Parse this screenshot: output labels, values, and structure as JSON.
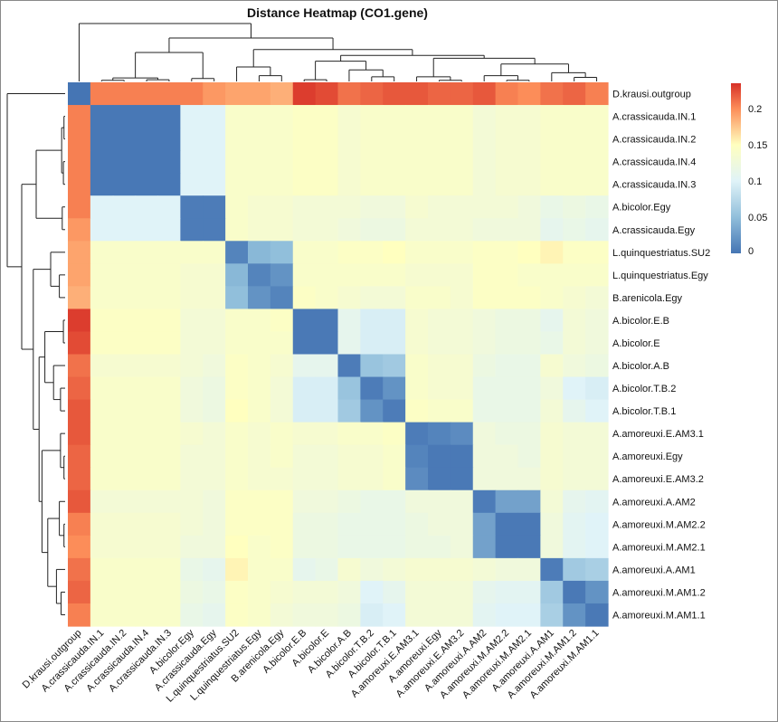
{
  "chart_data": {
    "type": "heatmap",
    "title": "Distance Heatmap (CO1.gene)",
    "labels": [
      "D.krausi.outgroup",
      "A.crassicauda.IN.1",
      "A.crassicauda.IN.2",
      "A.crassicauda.IN.4",
      "A.crassicauda.IN.3",
      "A.bicolor.Egy",
      "A.crassicauda.Egy",
      "L.quinquestriatus.SU2",
      "L.quinquestriatus.Egy",
      "B.arenicola.Egy",
      "A.bicolor.E.B",
      "A.bicolor.E",
      "A.bicolor.A.B",
      "A.bicolor.T.B.2",
      "A.bicolor.T.B.1",
      "A.amoreuxi.E.AM3.1",
      "A.amoreuxi.Egy",
      "A.amoreuxi.E.AM3.2",
      "A.amoreuxi.A.AM2",
      "A.amoreuxi.M.AM2.2",
      "A.amoreuxi.M.AM2.1",
      "A.amoreuxi.A.AM1",
      "A.amoreuxi.M.AM1.2",
      "A.amoreuxi.M.AM1.1"
    ],
    "values": [
      [
        0,
        0.205,
        0.205,
        0.205,
        0.205,
        0.205,
        0.195,
        0.19,
        0.19,
        0.185,
        0.23,
        0.225,
        0.21,
        0.215,
        0.22,
        0.22,
        0.215,
        0.215,
        0.22,
        0.205,
        0.2,
        0.21,
        0.215,
        0.205
      ],
      [
        0.205,
        0.002,
        0.002,
        0.002,
        0.002,
        0.1,
        0.1,
        0.14,
        0.14,
        0.14,
        0.145,
        0.145,
        0.135,
        0.14,
        0.14,
        0.14,
        0.14,
        0.14,
        0.13,
        0.135,
        0.135,
        0.14,
        0.14,
        0.14
      ],
      [
        0.205,
        0.002,
        0.002,
        0.002,
        0.002,
        0.1,
        0.1,
        0.14,
        0.14,
        0.14,
        0.145,
        0.145,
        0.135,
        0.14,
        0.14,
        0.14,
        0.14,
        0.14,
        0.13,
        0.135,
        0.135,
        0.14,
        0.14,
        0.14
      ],
      [
        0.205,
        0.002,
        0.002,
        0.002,
        0.002,
        0.1,
        0.1,
        0.14,
        0.14,
        0.14,
        0.145,
        0.145,
        0.135,
        0.14,
        0.14,
        0.14,
        0.14,
        0.14,
        0.13,
        0.135,
        0.135,
        0.14,
        0.14,
        0.14
      ],
      [
        0.205,
        0.002,
        0.002,
        0.002,
        0.002,
        0.1,
        0.1,
        0.14,
        0.14,
        0.14,
        0.145,
        0.145,
        0.135,
        0.14,
        0.14,
        0.14,
        0.14,
        0.14,
        0.13,
        0.135,
        0.135,
        0.14,
        0.14,
        0.14
      ],
      [
        0.205,
        0.1,
        0.1,
        0.1,
        0.1,
        0.005,
        0.005,
        0.14,
        0.135,
        0.135,
        0.13,
        0.13,
        0.13,
        0.125,
        0.125,
        0.135,
        0.13,
        0.13,
        0.13,
        0.13,
        0.125,
        0.115,
        0.12,
        0.115
      ],
      [
        0.195,
        0.1,
        0.1,
        0.1,
        0.1,
        0.005,
        0.005,
        0.14,
        0.135,
        0.135,
        0.13,
        0.13,
        0.125,
        0.12,
        0.12,
        0.13,
        0.13,
        0.13,
        0.125,
        0.125,
        0.125,
        0.11,
        0.115,
        0.11
      ],
      [
        0.19,
        0.14,
        0.14,
        0.14,
        0.14,
        0.14,
        0.14,
        0.01,
        0.045,
        0.05,
        0.14,
        0.14,
        0.145,
        0.145,
        0.15,
        0.14,
        0.14,
        0.14,
        0.145,
        0.145,
        0.15,
        0.155,
        0.145,
        0.145
      ],
      [
        0.19,
        0.14,
        0.14,
        0.14,
        0.14,
        0.135,
        0.135,
        0.045,
        0.01,
        0.02,
        0.14,
        0.14,
        0.14,
        0.14,
        0.14,
        0.135,
        0.135,
        0.135,
        0.145,
        0.145,
        0.14,
        0.14,
        0.14,
        0.14
      ],
      [
        0.185,
        0.14,
        0.14,
        0.14,
        0.14,
        0.135,
        0.135,
        0.05,
        0.02,
        0.01,
        0.145,
        0.14,
        0.135,
        0.13,
        0.13,
        0.14,
        0.14,
        0.135,
        0.145,
        0.145,
        0.145,
        0.14,
        0.135,
        0.13
      ],
      [
        0.23,
        0.145,
        0.145,
        0.145,
        0.145,
        0.13,
        0.13,
        0.14,
        0.14,
        0.145,
        0.003,
        0.003,
        0.11,
        0.095,
        0.095,
        0.135,
        0.13,
        0.13,
        0.125,
        0.12,
        0.12,
        0.11,
        0.13,
        0.125
      ],
      [
        0.225,
        0.145,
        0.145,
        0.145,
        0.145,
        0.13,
        0.13,
        0.14,
        0.14,
        0.14,
        0.003,
        0.003,
        0.11,
        0.095,
        0.095,
        0.135,
        0.13,
        0.13,
        0.125,
        0.12,
        0.12,
        0.115,
        0.13,
        0.125
      ],
      [
        0.21,
        0.135,
        0.135,
        0.135,
        0.135,
        0.13,
        0.125,
        0.145,
        0.14,
        0.135,
        0.11,
        0.11,
        0.005,
        0.055,
        0.06,
        0.14,
        0.135,
        0.135,
        0.12,
        0.115,
        0.115,
        0.135,
        0.125,
        0.12
      ],
      [
        0.215,
        0.14,
        0.14,
        0.14,
        0.14,
        0.125,
        0.12,
        0.145,
        0.14,
        0.13,
        0.095,
        0.095,
        0.055,
        0.005,
        0.02,
        0.14,
        0.135,
        0.135,
        0.115,
        0.115,
        0.115,
        0.125,
        0.1,
        0.095
      ],
      [
        0.22,
        0.14,
        0.14,
        0.14,
        0.14,
        0.125,
        0.12,
        0.15,
        0.14,
        0.13,
        0.095,
        0.095,
        0.06,
        0.02,
        0.005,
        0.145,
        0.14,
        0.14,
        0.115,
        0.115,
        0.115,
        0.13,
        0.11,
        0.1
      ],
      [
        0.22,
        0.14,
        0.14,
        0.14,
        0.14,
        0.135,
        0.13,
        0.14,
        0.135,
        0.14,
        0.135,
        0.135,
        0.14,
        0.14,
        0.145,
        0.005,
        0.01,
        0.015,
        0.125,
        0.12,
        0.12,
        0.135,
        0.13,
        0.13
      ],
      [
        0.215,
        0.14,
        0.14,
        0.14,
        0.14,
        0.13,
        0.13,
        0.14,
        0.135,
        0.14,
        0.13,
        0.13,
        0.135,
        0.135,
        0.14,
        0.01,
        0.003,
        0.003,
        0.125,
        0.125,
        0.12,
        0.135,
        0.13,
        0.13
      ],
      [
        0.215,
        0.14,
        0.14,
        0.14,
        0.14,
        0.13,
        0.13,
        0.14,
        0.135,
        0.135,
        0.13,
        0.13,
        0.135,
        0.135,
        0.14,
        0.015,
        0.003,
        0.003,
        0.125,
        0.125,
        0.125,
        0.135,
        0.13,
        0.13
      ],
      [
        0.22,
        0.13,
        0.13,
        0.13,
        0.13,
        0.13,
        0.125,
        0.145,
        0.145,
        0.145,
        0.125,
        0.125,
        0.12,
        0.115,
        0.115,
        0.125,
        0.125,
        0.125,
        0.005,
        0.03,
        0.03,
        0.13,
        0.11,
        0.105
      ],
      [
        0.205,
        0.135,
        0.135,
        0.135,
        0.135,
        0.13,
        0.125,
        0.145,
        0.145,
        0.145,
        0.12,
        0.12,
        0.115,
        0.115,
        0.115,
        0.12,
        0.125,
        0.125,
        0.03,
        0.003,
        0.003,
        0.125,
        0.105,
        0.1
      ],
      [
        0.2,
        0.135,
        0.135,
        0.135,
        0.135,
        0.125,
        0.125,
        0.15,
        0.14,
        0.145,
        0.12,
        0.12,
        0.115,
        0.115,
        0.115,
        0.12,
        0.12,
        0.125,
        0.03,
        0.003,
        0.003,
        0.125,
        0.105,
        0.1
      ],
      [
        0.21,
        0.14,
        0.14,
        0.14,
        0.14,
        0.115,
        0.11,
        0.155,
        0.14,
        0.14,
        0.11,
        0.115,
        0.135,
        0.125,
        0.13,
        0.135,
        0.135,
        0.135,
        0.13,
        0.125,
        0.125,
        0.005,
        0.06,
        0.065
      ],
      [
        0.215,
        0.14,
        0.14,
        0.14,
        0.14,
        0.12,
        0.115,
        0.145,
        0.14,
        0.135,
        0.13,
        0.13,
        0.125,
        0.1,
        0.11,
        0.13,
        0.13,
        0.13,
        0.11,
        0.105,
        0.105,
        0.06,
        0.003,
        0.02
      ],
      [
        0.205,
        0.14,
        0.14,
        0.14,
        0.14,
        0.115,
        0.11,
        0.145,
        0.14,
        0.13,
        0.125,
        0.125,
        0.12,
        0.095,
        0.1,
        0.13,
        0.13,
        0.13,
        0.105,
        0.1,
        0.1,
        0.065,
        0.02,
        0.003
      ]
    ],
    "color_scale": {
      "min": 0,
      "max": 0.235,
      "stops": [
        [
          0,
          "#4575b4"
        ],
        [
          0.05,
          "#91bfdb"
        ],
        [
          0.1,
          "#e0f3f8"
        ],
        [
          0.15,
          "#ffffbf"
        ],
        [
          0.2,
          "#fc8d59"
        ],
        [
          0.235,
          "#d73027"
        ]
      ]
    },
    "legend_ticks": [
      "0",
      "0.05",
      "0.1",
      "0.15",
      "0.2"
    ],
    "legend_tick_values": [
      0,
      0.05,
      0.1,
      0.15,
      0.2
    ],
    "legend_placement": "right",
    "dendrogram": {
      "h": 1,
      "c": [
        0,
        {
          "h": 0.75,
          "c": [
            {
              "h": 0.5,
              "c": [
                {
                  "h": 0.06,
                  "c": [
                    {
                      "h": 0.02,
                      "c": [
                        1,
                        2
                      ]
                    },
                    {
                      "h": 0.03,
                      "c": [
                        3,
                        4
                      ]
                    }
                  ]
                },
                {
                  "h": 0.05,
                  "c": [
                    5,
                    6
                  ]
                }
              ]
            },
            {
              "h": 0.55,
              "c": [
                {
                  "h": 0.25,
                  "c": [
                    7,
                    {
                      "h": 0.1,
                      "c": [
                        8,
                        9
                      ]
                    }
                  ]
                },
                {
                  "h": 0.45,
                  "c": [
                    {
                      "h": 0.35,
                      "c": [
                        {
                          "h": 0.03,
                          "c": [
                            10,
                            11
                          ]
                        },
                        {
                          "h": 0.2,
                          "c": [
                            12,
                            {
                              "h": 0.08,
                              "c": [
                                13,
                                14
                              ]
                            }
                          ]
                        }
                      ]
                    },
                    {
                      "h": 0.4,
                      "c": [
                        {
                          "h": 0.08,
                          "c": [
                            15,
                            {
                              "h": 0.02,
                              "c": [
                                16,
                                17
                              ]
                            }
                          ]
                        },
                        {
                          "h": 0.3,
                          "c": [
                            {
                              "h": 0.1,
                              "c": [
                                18,
                                {
                                  "h": 0.02,
                                  "c": [
                                    19,
                                    20
                                  ]
                                }
                              ]
                            },
                            {
                              "h": 0.15,
                              "c": [
                                21,
                                {
                                  "h": 0.07,
                                  "c": [
                                    22,
                                    23
                                  ]
                                }
                              ]
                            }
                          ]
                        }
                      ]
                    }
                  ]
                }
              ]
            }
          ]
        }
      ]
    }
  }
}
